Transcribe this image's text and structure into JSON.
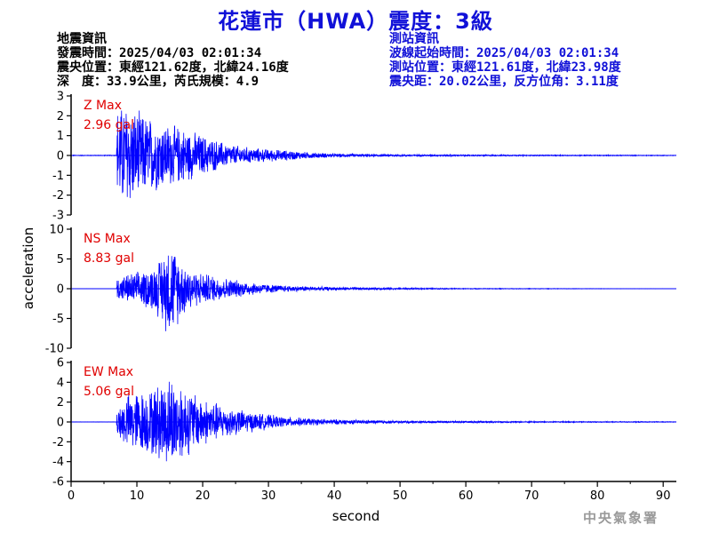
{
  "header": {
    "title": "花蓮市（HWA）震度：3級"
  },
  "earthquake_info": {
    "heading": "地震資訊",
    "origin_time": "發震時間：2025/04/03 02:01:34",
    "epicenter": "震央位置：東經121.62度，北緯24.16度",
    "depth_magnitude": "深　度：33.9公里，芮氏規模：4.9"
  },
  "station_info": {
    "heading": "測站資訊",
    "wave_start": "波線起始時間：2025/04/03 02:01:34",
    "station_location": "測站位置：東經121.61度，北緯23.98度",
    "distance_azimuth": "震央距：20.02公里，反方位角：3.11度"
  },
  "footer": {
    "agency": "中央氣象署"
  },
  "colors": {
    "trace": "#0000ff",
    "max_label": "#e00000",
    "title": "#1010d8",
    "axis": "#000000"
  },
  "chart_data": {
    "type": "line",
    "xlabel": "second",
    "ylabel": "acceleration",
    "xlim": [
      0,
      92
    ],
    "xticks": [
      0,
      10,
      20,
      30,
      40,
      50,
      60,
      70,
      80,
      90
    ],
    "p_arrival_s": 7,
    "panels": [
      {
        "component": "Z",
        "max_label": "Z Max",
        "max_value": "2.96 gal",
        "ylim": [
          -3,
          3
        ],
        "yticks": [
          -3,
          -2,
          -1,
          0,
          1,
          2,
          3
        ],
        "envelope": [
          [
            0,
            0.02
          ],
          [
            6.9,
            0.02
          ],
          [
            7.0,
            2.6
          ],
          [
            8.5,
            2.96
          ],
          [
            10,
            2.4
          ],
          [
            12,
            2.1
          ],
          [
            14,
            1.8
          ],
          [
            17,
            1.5
          ],
          [
            20,
            1.1
          ],
          [
            24,
            0.6
          ],
          [
            28,
            0.4
          ],
          [
            32,
            0.3
          ],
          [
            36,
            0.18
          ],
          [
            40,
            0.1
          ],
          [
            50,
            0.06
          ],
          [
            60,
            0.04
          ],
          [
            75,
            0.03
          ],
          [
            92,
            0.02
          ]
        ]
      },
      {
        "component": "NS",
        "max_label": "NS Max",
        "max_value": "8.83 gal",
        "ylim": [
          -10,
          10
        ],
        "yticks": [
          -10,
          -5,
          0,
          5,
          10
        ],
        "envelope": [
          [
            0,
            0.02
          ],
          [
            6.9,
            0.02
          ],
          [
            7.0,
            2.0
          ],
          [
            9,
            2.8
          ],
          [
            11,
            3.2
          ],
          [
            13,
            4.5
          ],
          [
            15,
            8.83
          ],
          [
            17,
            4.8
          ],
          [
            19,
            3.2
          ],
          [
            22,
            2.3
          ],
          [
            26,
            1.4
          ],
          [
            30,
            0.8
          ],
          [
            34,
            0.5
          ],
          [
            40,
            0.3
          ],
          [
            50,
            0.15
          ],
          [
            60,
            0.08
          ],
          [
            73,
            0.05
          ],
          [
            92,
            0.02
          ]
        ]
      },
      {
        "component": "EW",
        "max_label": "EW Max",
        "max_value": "5.06 gal",
        "ylim": [
          -6,
          6
        ],
        "yticks": [
          -6,
          -4,
          -2,
          0,
          2,
          4,
          6
        ],
        "envelope": [
          [
            0,
            0.02
          ],
          [
            6.9,
            0.02
          ],
          [
            7.0,
            1.8
          ],
          [
            9,
            3.2
          ],
          [
            12,
            3.5
          ],
          [
            14,
            4.6
          ],
          [
            15.5,
            5.06
          ],
          [
            17,
            4.0
          ],
          [
            20,
            2.6
          ],
          [
            24,
            1.6
          ],
          [
            28,
            1.0
          ],
          [
            32,
            0.6
          ],
          [
            36,
            0.4
          ],
          [
            42,
            0.25
          ],
          [
            50,
            0.15
          ],
          [
            60,
            0.1
          ],
          [
            75,
            0.06
          ],
          [
            92,
            0.04
          ]
        ]
      }
    ]
  }
}
